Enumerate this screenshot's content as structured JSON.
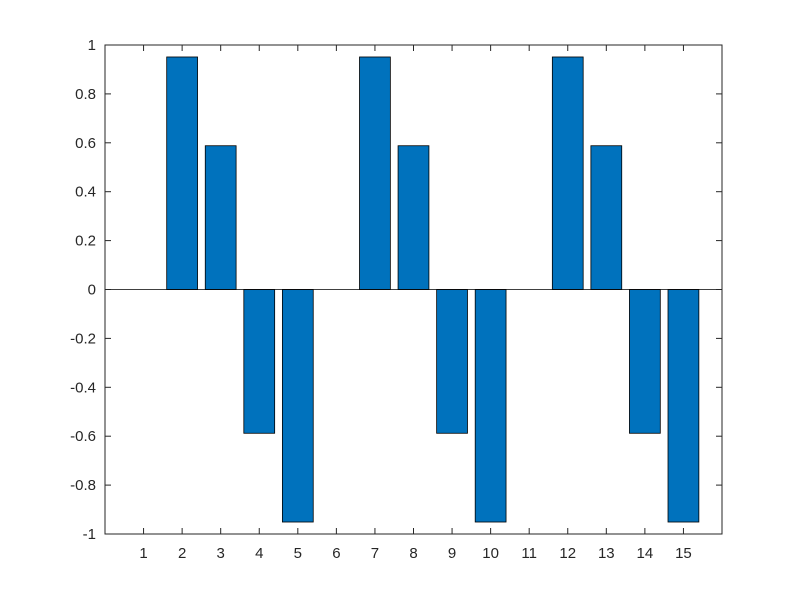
{
  "chart_data": {
    "type": "bar",
    "title": "",
    "xlabel": "",
    "ylabel": "",
    "categories": [
      "1",
      "2",
      "3",
      "4",
      "5",
      "6",
      "7",
      "8",
      "9",
      "10",
      "11",
      "12",
      "13",
      "14",
      "15"
    ],
    "values": [
      0,
      0.951,
      0.588,
      -0.588,
      -0.951,
      0,
      0.951,
      0.588,
      -0.588,
      -0.951,
      0,
      0.951,
      0.588,
      -0.588,
      -0.951
    ],
    "ylim": [
      -1,
      1
    ],
    "xlim": [
      0,
      16
    ],
    "yticks": [
      "-1",
      "-0.8",
      "-0.6",
      "-0.4",
      "-0.2",
      "0",
      "0.2",
      "0.4",
      "0.6",
      "0.8",
      "1"
    ],
    "grid": false,
    "colors": {
      "bar_fill": "#0072BD",
      "bar_stroke": "#000000",
      "axis": "#262626",
      "background": "#ffffff"
    }
  }
}
